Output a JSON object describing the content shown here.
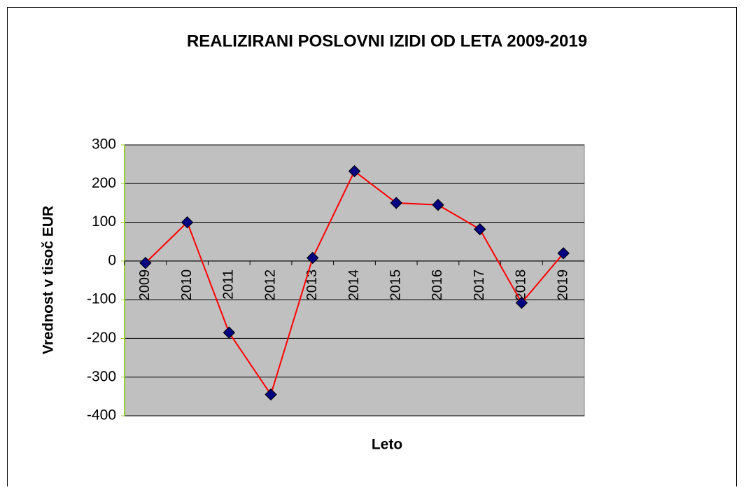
{
  "chart_data": {
    "type": "line",
    "title": "REALIZIRANI POSLOVNI IZIDI OD LETA 2009-2019",
    "x_label": "Leto",
    "y_label": "Vrednost v tisoč EUR",
    "categories": [
      "2009",
      "2010",
      "2011",
      "2012",
      "2013",
      "2014",
      "2015",
      "2016",
      "2017",
      "2018",
      "2019"
    ],
    "values": [
      -5,
      100,
      -185,
      -345,
      8,
      232,
      150,
      145,
      82,
      -108,
      20
    ],
    "color": "#ff0000",
    "marker_color": "#000080",
    "ylim": [
      -400,
      300
    ],
    "yticks": [
      -400,
      -300,
      -200,
      -100,
      0,
      100,
      200,
      300
    ],
    "grid": true
  }
}
